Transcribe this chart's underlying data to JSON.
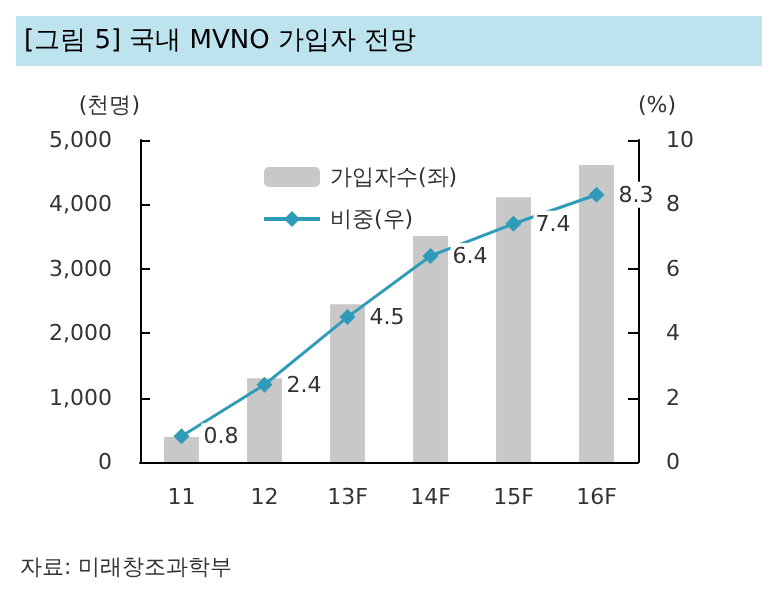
{
  "chart_data": {
    "type": "bar",
    "title": "[그림 5] 국내 MVNO 가입자 전망",
    "ylabel": "(천명)",
    "y2label": "(%)",
    "categories": [
      "11",
      "12",
      "13F",
      "14F",
      "15F",
      "16F"
    ],
    "series": [
      {
        "name": "가입자수(좌)",
        "color": "#c8c8c8",
        "values": [
          390,
          1300,
          2450,
          3510,
          4110,
          4610
        ]
      },
      {
        "name": "비중(우)",
        "type": "line",
        "axis": "y2",
        "color": "#2e9bb8",
        "marker": "diamond",
        "data_labels": true,
        "values": [
          0.8,
          2.4,
          4.5,
          6.4,
          7.4,
          8.3
        ]
      }
    ],
    "ylim": [
      0,
      5000
    ],
    "yticks": [
      {
        "value": 0,
        "label": "0"
      },
      {
        "value": 1000,
        "label": "1,000"
      },
      {
        "value": 2000,
        "label": "2,000"
      },
      {
        "value": 3000,
        "label": "3,000"
      },
      {
        "value": 4000,
        "label": "4,000"
      },
      {
        "value": 5000,
        "label": "5,000"
      }
    ],
    "y2lim": [
      0,
      10
    ],
    "y2ticks": [
      0,
      2,
      4,
      6,
      8,
      10
    ],
    "legend": "top left",
    "grid": false,
    "annotations": [
      "자료: 미래창조과학부"
    ]
  }
}
